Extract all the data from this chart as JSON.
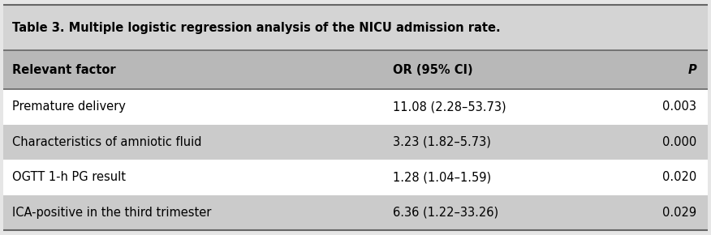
{
  "title": "Table 3. Multiple logistic regression analysis of the NICU admission rate.",
  "headers": [
    "Relevant factor",
    "OR (95% CI)",
    "P"
  ],
  "rows": [
    [
      "Premature delivery",
      "11.08 (2.28–53.73)",
      "0.003"
    ],
    [
      "Characteristics of amniotic fluid",
      "3.23 (1.82–5.73)",
      "0.000"
    ],
    [
      "OGTT 1-h PG result",
      "1.28 (1.04–1.59)",
      "0.020"
    ],
    [
      "ICA-positive in the third trimester",
      "6.36 (1.22–33.26)",
      "0.029"
    ]
  ],
  "row_colors": [
    "#ffffff",
    "#cbcbcb",
    "#ffffff",
    "#cbcbcb"
  ],
  "header_bg": "#b8b8b8",
  "title_bg": "#d4d4d4",
  "outer_bg": "#e6e6e6",
  "col_aligns": [
    "left",
    "left",
    "right"
  ],
  "title_fontsize": 10.5,
  "header_fontsize": 10.5,
  "row_fontsize": 10.5
}
